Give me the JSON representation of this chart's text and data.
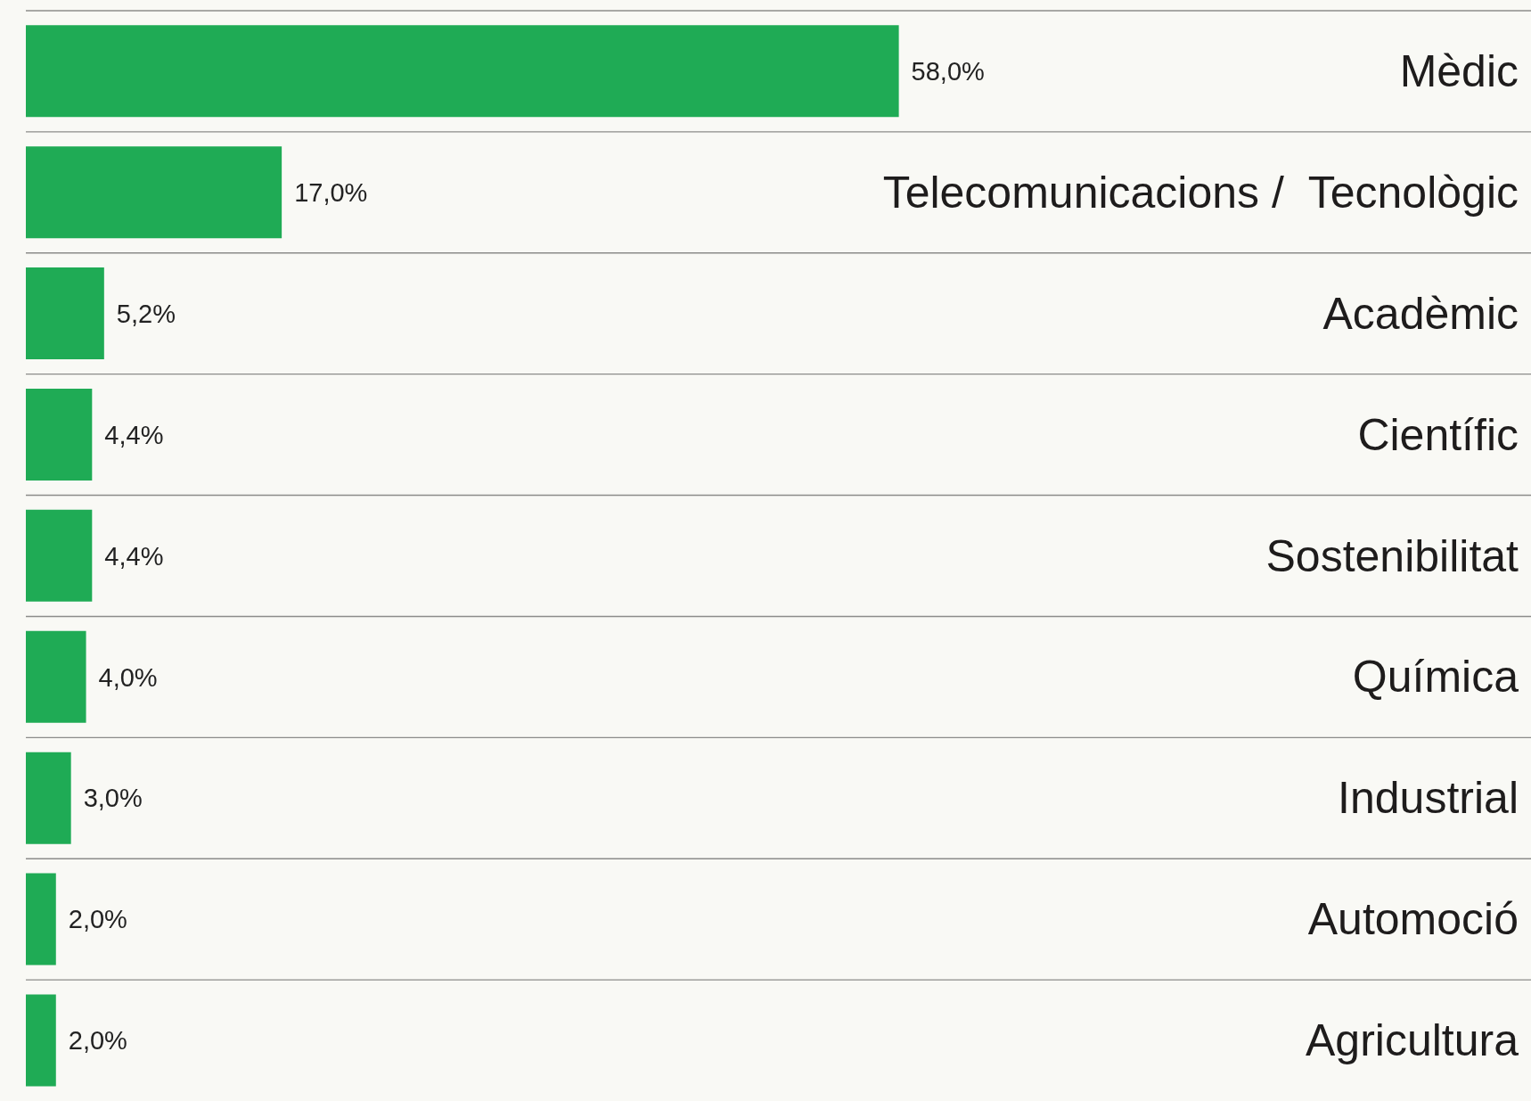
{
  "chart_data": {
    "type": "bar",
    "orientation": "horizontal",
    "categories": [
      "Mèdic",
      "Telecomunicacions /  Tecnològic",
      "Acadèmic",
      "Científic",
      "Sostenibilitat",
      "Química",
      "Industrial",
      "Automoció",
      "Agricultura"
    ],
    "values": [
      58.0,
      17.0,
      5.2,
      4.4,
      4.4,
      4.0,
      3.0,
      2.0,
      2.0
    ],
    "value_labels": [
      "58,0%",
      "17,0%",
      "5,2%",
      "4,4%",
      "4,4%",
      "4,0%",
      "3,0%",
      "2,0%",
      "2,0%"
    ],
    "color": "#1fab55",
    "xlim": [
      0,
      100
    ],
    "grid": "y",
    "tick_labels": "y"
  }
}
